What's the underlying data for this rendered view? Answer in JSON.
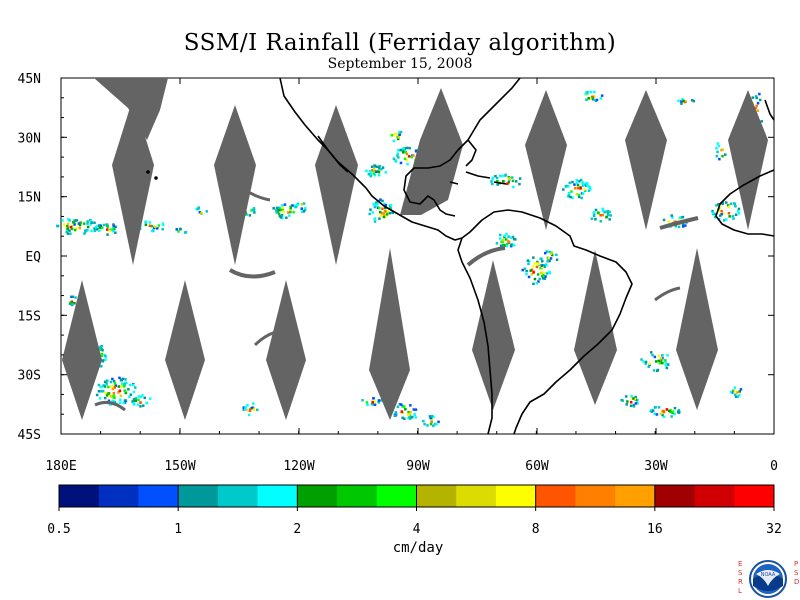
{
  "title": "SSM/I Rainfall (Ferriday algorithm)",
  "subtitle": "September 15, 2008",
  "lat_labels": [
    "45N",
    "30N",
    "15N",
    "EQ",
    "15S",
    "30S",
    "45S"
  ],
  "lon_labels": [
    "180E",
    "150W",
    "120W",
    "90W",
    "60W",
    "30W",
    "0"
  ],
  "colorbar": {
    "labels": [
      "0.5",
      "1",
      "2",
      "4",
      "8",
      "16",
      "32"
    ],
    "units": "cm/day",
    "colors": [
      "#00107a",
      "#0030c0",
      "#0050ff",
      "#00999b",
      "#00c9c9",
      "#00ffff",
      "#00a000",
      "#00c800",
      "#00ff00",
      "#b3b300",
      "#dcdc00",
      "#ffff00",
      "#ff5500",
      "#ff7f00",
      "#ffa000",
      "#a00000",
      "#d10000",
      "#ff0000"
    ]
  },
  "logo": {
    "name": "NOAA",
    "left_letters": "ESRL",
    "right_letters": "PSD"
  },
  "swath_gap_color": "#646464",
  "coast_color": "#000000"
}
